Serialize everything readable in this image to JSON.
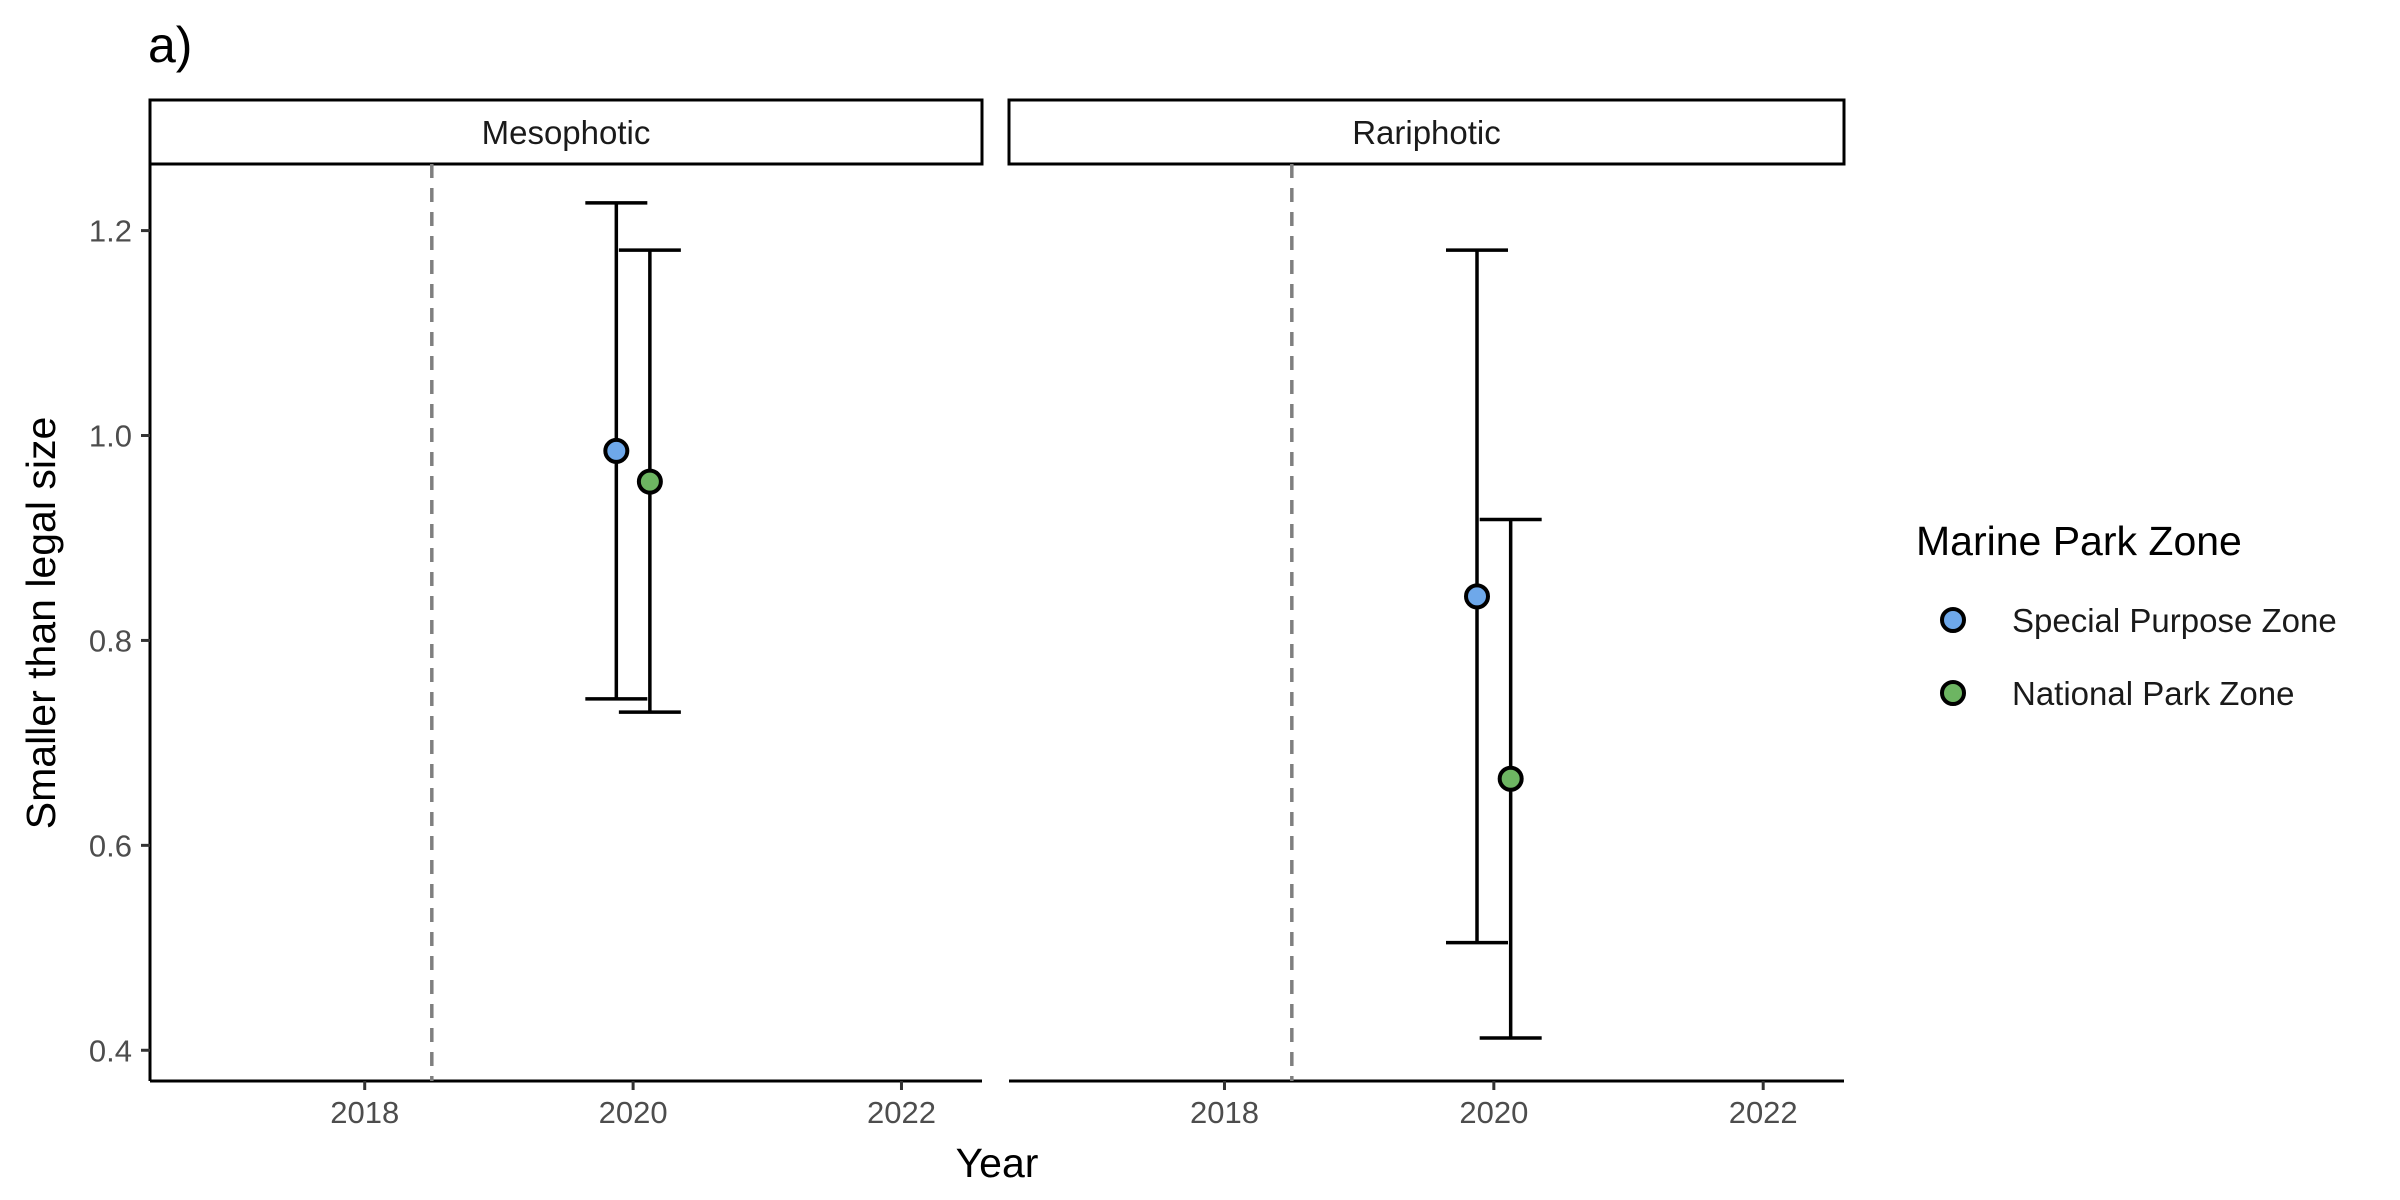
{
  "chart_data": {
    "type": "scatter",
    "tag": "a)",
    "xlabel": "Year",
    "ylabel": "Smaller than legal size",
    "xlim": [
      2016.4,
      2022.6
    ],
    "ylim": [
      0.37,
      1.265
    ],
    "x_ticks": [
      2018,
      2020,
      2022
    ],
    "y_ticks": [
      "0.4",
      "0.6",
      "0.8",
      "1.0",
      "1.2"
    ],
    "reference_line_x": 2018.5,
    "dodge": 0.125,
    "grid": false,
    "legend": {
      "title": "Marine Park Zone",
      "placement": "right",
      "entries": [
        "Special Purpose Zone",
        "National Park Zone"
      ]
    },
    "series_colors": {
      "Special Purpose Zone": "#6ea8ea",
      "National Park Zone": "#6db562"
    },
    "panels": [
      {
        "title": "Mesophotic",
        "series": [
          {
            "name": "Special Purpose Zone",
            "x": 2020,
            "y": 0.985,
            "ymin": 0.743,
            "ymax": 1.227
          },
          {
            "name": "National Park Zone",
            "x": 2020,
            "y": 0.955,
            "ymin": 0.73,
            "ymax": 1.181
          }
        ]
      },
      {
        "title": "Rariphotic",
        "series": [
          {
            "name": "Special Purpose Zone",
            "x": 2020,
            "y": 0.843,
            "ymin": 0.505,
            "ymax": 1.181
          },
          {
            "name": "National Park Zone",
            "x": 2020,
            "y": 0.665,
            "ymin": 0.412,
            "ymax": 0.918
          }
        ]
      }
    ]
  }
}
